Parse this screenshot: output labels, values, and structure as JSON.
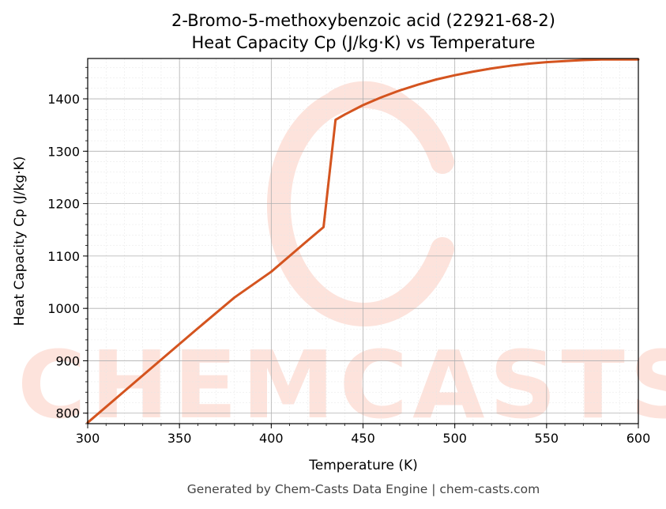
{
  "chart_data": {
    "type": "line",
    "title": "2-Bromo-5-methoxybenzoic acid (22921-68-2)",
    "subtitle": "Heat Capacity Cp (J/kg·K) vs Temperature",
    "xlabel": "Temperature (K)",
    "ylabel": "Heat Capacity Cp (J/kg·K)",
    "xlim": [
      300,
      600
    ],
    "ylim": [
      780,
      1477
    ],
    "xticks": [
      300,
      350,
      400,
      450,
      500,
      550,
      600
    ],
    "yticks": [
      800,
      900,
      1000,
      1100,
      1200,
      1300,
      1400
    ],
    "grid": true,
    "line_color": "#d4541f",
    "series": [
      {
        "name": "",
        "x": [
          300,
          320,
          340,
          360,
          380,
          400,
          420,
          428.5,
          435,
          440,
          450,
          460,
          470,
          480,
          490,
          500,
          510,
          520,
          530,
          540,
          550,
          560,
          570,
          580,
          590,
          600
        ],
        "y": [
          782,
          842,
          902,
          962,
          1021,
          1070,
          1130,
          1155,
          1360,
          1370,
          1388,
          1403,
          1416,
          1427,
          1437,
          1445,
          1452,
          1458,
          1463,
          1467,
          1470,
          1472,
          1474,
          1475,
          1475,
          1475
        ]
      }
    ]
  },
  "watermark": {
    "text": "CHEMCASTS",
    "color": "#fde3dc"
  },
  "footer": "Generated by Chem-Casts Data Engine | chem-casts.com"
}
